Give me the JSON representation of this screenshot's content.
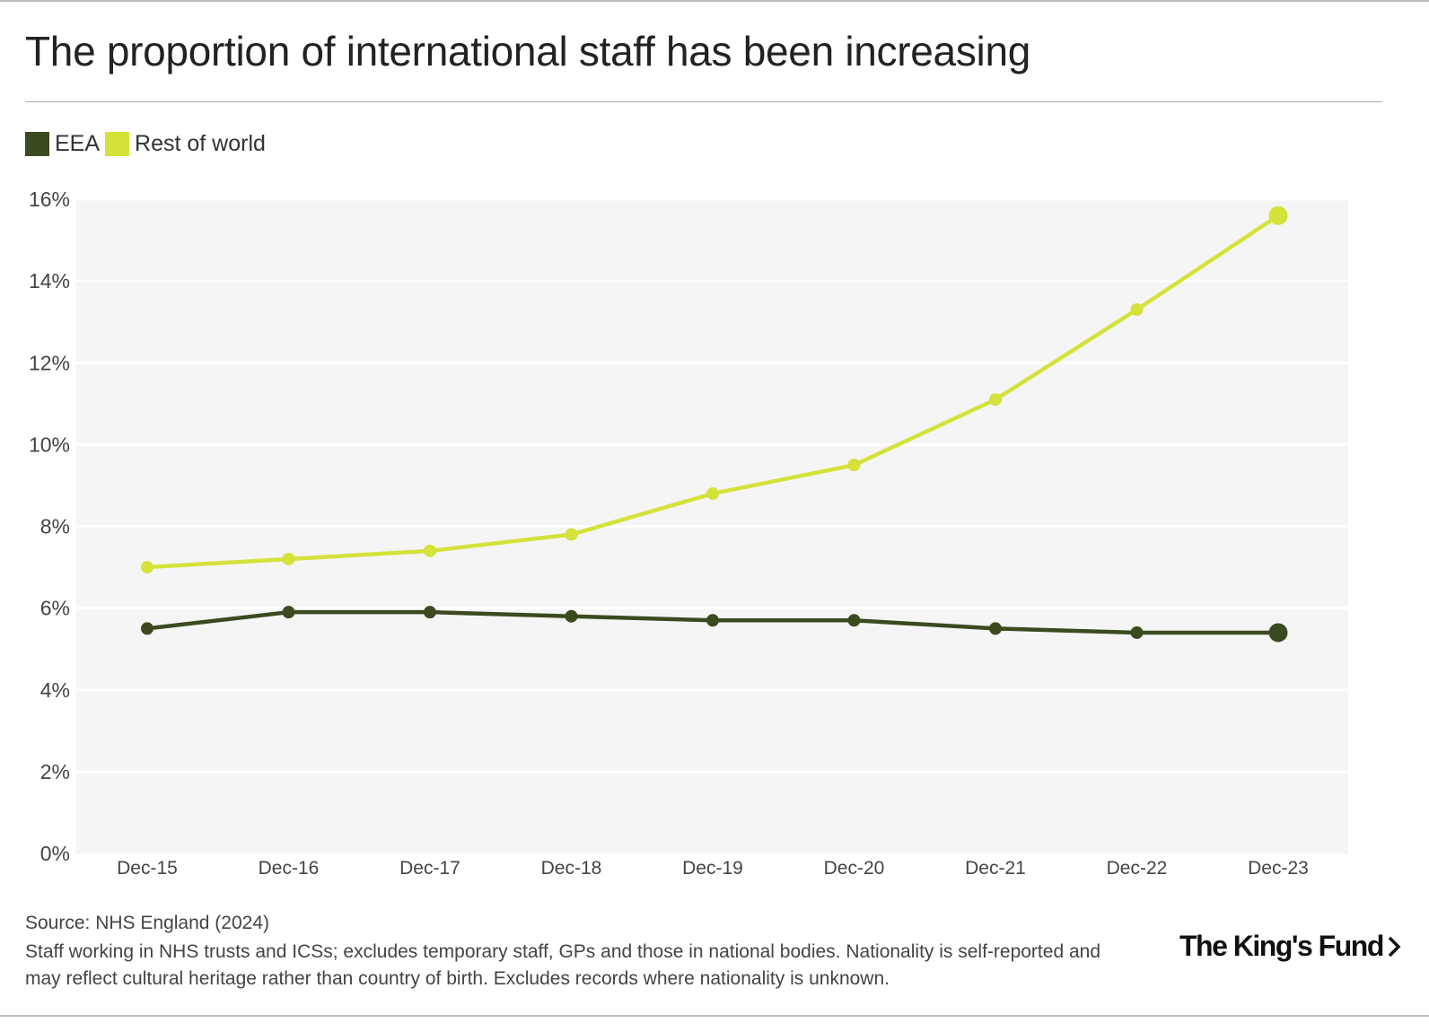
{
  "title": "The proportion of international staff has been increasing",
  "legend": [
    {
      "label": "EEA",
      "color": "#3b4a1f"
    },
    {
      "label": "Rest of world",
      "color": "#d4e23a"
    }
  ],
  "chart_data": {
    "type": "line",
    "title": "The proportion of international staff has been increasing",
    "xlabel": "",
    "ylabel": "",
    "categories": [
      "Dec-15",
      "Dec-16",
      "Dec-17",
      "Dec-18",
      "Dec-19",
      "Dec-20",
      "Dec-21",
      "Dec-22",
      "Dec-23"
    ],
    "ylim": [
      0,
      16
    ],
    "yticks": [
      0,
      2,
      4,
      6,
      8,
      10,
      12,
      14,
      16
    ],
    "ytick_suffix": "%",
    "grid": true,
    "legend_position": "top-left",
    "series": [
      {
        "name": "EEA",
        "color": "#3b4a1f",
        "values": [
          5.5,
          5.9,
          5.9,
          5.8,
          5.7,
          5.7,
          5.5,
          5.4,
          5.4
        ]
      },
      {
        "name": "Rest of world",
        "color": "#d4e23a",
        "values": [
          7.0,
          7.2,
          7.4,
          7.8,
          8.8,
          9.5,
          11.1,
          13.3,
          15.6
        ]
      }
    ]
  },
  "source": "Source: NHS England (2024)",
  "note": "Staff working in NHS trusts and ICSs; excludes temporary staff, GPs and those in national bodies. Nationality is self-reported and may reflect cultural heritage rather than country of birth. Excludes records where nationality is unknown.",
  "logo": {
    "text": "The King's Fund",
    "mark": "chevron-right"
  }
}
